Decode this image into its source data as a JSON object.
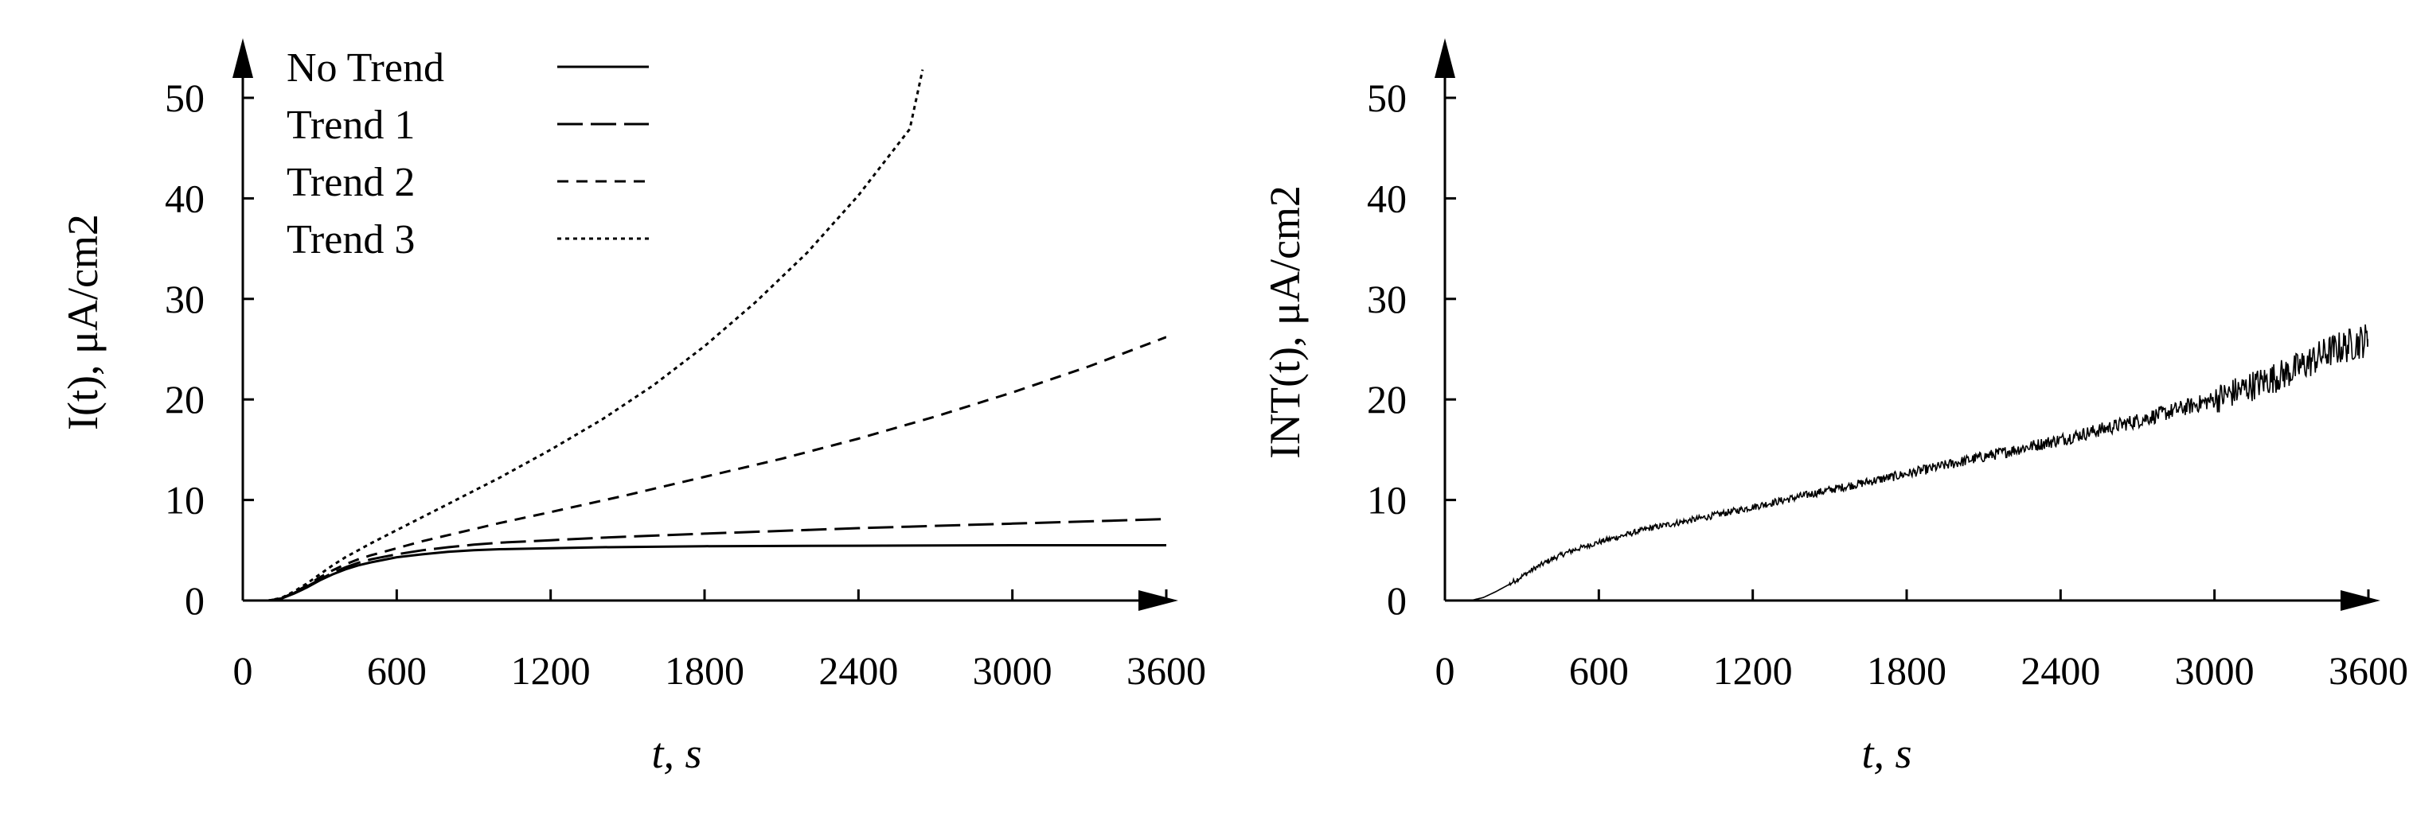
{
  "chart_data": [
    {
      "type": "line",
      "xlabel": "t, s",
      "ylabel": "I(t), μA/cm2",
      "xlim": [
        0,
        3700
      ],
      "ylim": [
        0,
        53
      ],
      "xticks": [
        0,
        600,
        1200,
        1800,
        2400,
        3000,
        3600
      ],
      "yticks": [
        0,
        10,
        20,
        30,
        40,
        50
      ],
      "grid": false,
      "legend": "top-left",
      "series": [
        {
          "name": "No Trend",
          "style": "solid",
          "x": [
            100,
            150,
            200,
            250,
            300,
            350,
            400,
            450,
            500,
            600,
            700,
            800,
            900,
            1000,
            1200,
            1400,
            1800,
            2400,
            3000,
            3600
          ],
          "y": [
            0,
            0.2,
            0.7,
            1.3,
            2.0,
            2.6,
            3.1,
            3.5,
            3.8,
            4.3,
            4.6,
            4.85,
            5.0,
            5.1,
            5.2,
            5.3,
            5.4,
            5.45,
            5.5,
            5.5
          ]
        },
        {
          "name": "Trend 1",
          "style": "long-dash",
          "x": [
            100,
            150,
            200,
            250,
            300,
            350,
            400,
            450,
            500,
            600,
            700,
            800,
            900,
            1000,
            1200,
            1400,
            1800,
            2400,
            3000,
            3600
          ],
          "y": [
            0,
            0.2,
            0.75,
            1.4,
            2.1,
            2.75,
            3.3,
            3.75,
            4.1,
            4.6,
            5.0,
            5.3,
            5.55,
            5.75,
            6.0,
            6.25,
            6.65,
            7.2,
            7.65,
            8.1
          ]
        },
        {
          "name": "Trend 2",
          "style": "short-dash",
          "x": [
            100,
            150,
            200,
            250,
            300,
            350,
            400,
            450,
            500,
            600,
            700,
            800,
            900,
            1000,
            1200,
            1500,
            1800,
            2100,
            2400,
            2700,
            3000,
            3300,
            3600
          ],
          "y": [
            0,
            0.2,
            0.8,
            1.5,
            2.3,
            3.0,
            3.6,
            4.1,
            4.5,
            5.2,
            5.9,
            6.5,
            7.1,
            7.7,
            8.8,
            10.5,
            12.3,
            14.1,
            16.1,
            18.3,
            20.7,
            23.3,
            26.2
          ]
        },
        {
          "name": "Trend 3",
          "style": "dotted",
          "x": [
            100,
            150,
            200,
            250,
            300,
            350,
            400,
            500,
            600,
            700,
            800,
            900,
            1000,
            1200,
            1400,
            1600,
            1800,
            2000,
            2200,
            2400,
            2600,
            2650
          ],
          "y": [
            0,
            0.25,
            0.9,
            1.7,
            2.6,
            3.5,
            4.3,
            5.7,
            7.0,
            8.3,
            9.6,
            10.9,
            12.2,
            15.0,
            18.0,
            21.4,
            25.3,
            29.7,
            34.6,
            40.3,
            46.9,
            52.8
          ]
        }
      ]
    },
    {
      "type": "line",
      "xlabel": "t, s",
      "ylabel": "INT(t), μA/cm2",
      "xlim": [
        0,
        3700
      ],
      "ylim": [
        0,
        53
      ],
      "xticks": [
        0,
        600,
        1200,
        1800,
        2400,
        3000,
        3600
      ],
      "yticks": [
        0,
        10,
        20,
        30,
        40,
        50
      ],
      "grid": false,
      "series": [
        {
          "style": "solid-noisy",
          "x": [
            100,
            150,
            200,
            250,
            300,
            350,
            400,
            450,
            500,
            600,
            800,
            1000,
            1200,
            1500,
            1800,
            2100,
            2400,
            2700,
            3000,
            3300,
            3450,
            3600
          ],
          "y": [
            0,
            0.3,
            0.9,
            1.6,
            2.4,
            3.2,
            3.9,
            4.5,
            5.0,
            5.8,
            7.2,
            8.2,
            9.3,
            11.0,
            12.6,
            14.3,
            16.0,
            17.9,
            20.0,
            22.8,
            24.8,
            26.0
          ]
        }
      ]
    }
  ]
}
